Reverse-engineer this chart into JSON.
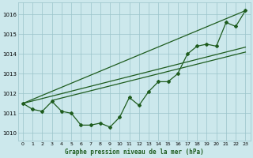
{
  "title": "Graphe pression niveau de la mer (hPa)",
  "background_color": "#cce8ec",
  "plot_bg_color": "#cce8ec",
  "grid_color": "#9ac4ca",
  "line_color": "#1e5c1e",
  "xlim": [
    -0.5,
    23.5
  ],
  "ylim": [
    1009.6,
    1016.6
  ],
  "yticks": [
    1010,
    1011,
    1012,
    1013,
    1014,
    1015,
    1016
  ],
  "xticks": [
    0,
    1,
    2,
    3,
    4,
    5,
    6,
    7,
    8,
    9,
    10,
    11,
    12,
    13,
    14,
    15,
    16,
    17,
    18,
    19,
    20,
    21,
    22,
    23
  ],
  "data_series": [
    1011.5,
    1011.2,
    1011.1,
    1011.6,
    1011.1,
    1011.0,
    1010.4,
    1010.4,
    1010.5,
    1010.3,
    1010.8,
    1011.8,
    1011.4,
    1012.1,
    1012.6,
    1012.6,
    1013.0,
    1014.0,
    1014.4,
    1014.5,
    1014.4,
    1015.6,
    1015.4,
    1016.2
  ],
  "trend_line1_x": [
    0,
    23
  ],
  "trend_line1_y": [
    1011.5,
    1016.2
  ],
  "trend_line2_x": [
    0,
    23
  ],
  "trend_line2_y": [
    1011.5,
    1014.35
  ],
  "trend_line3_x": [
    3,
    23
  ],
  "trend_line3_y": [
    1011.65,
    1014.1
  ]
}
